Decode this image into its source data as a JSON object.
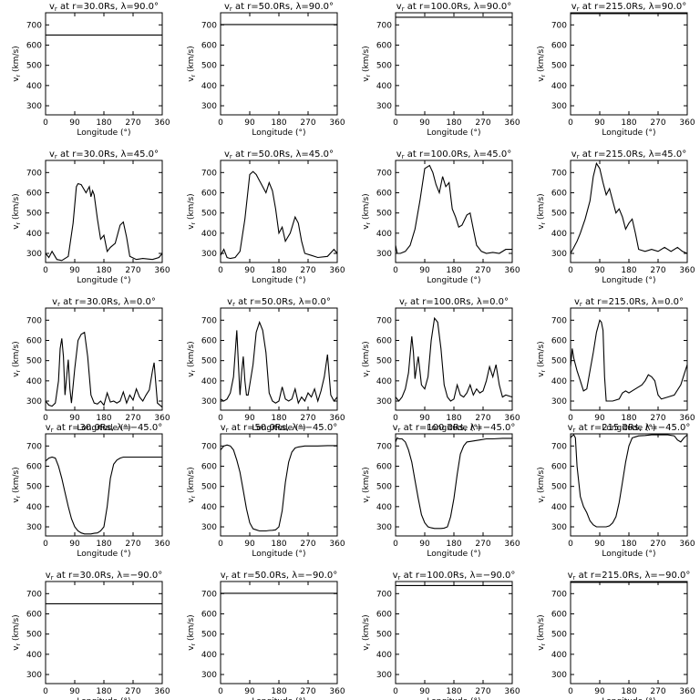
{
  "figure": {
    "xlabel": "Longitude (°)",
    "ylabel": "v_r (km/s)",
    "xticks": [
      0,
      90,
      180,
      270,
      360
    ],
    "yticks": [
      300,
      400,
      500,
      600,
      700
    ],
    "xlim": [
      0,
      360
    ],
    "ylim": [
      255,
      760
    ]
  },
  "chart_data": [
    {
      "type": "line",
      "title": "vr at r=30.0Rs, λ=90.0°",
      "xlabel": "Longitude (°)",
      "ylabel": "vr (km/s)",
      "xlim": [
        0,
        360
      ],
      "ylim": [
        255,
        760
      ],
      "x": [
        0,
        360
      ],
      "values": [
        650,
        650
      ]
    },
    {
      "type": "line",
      "title": "vr at r=50.0Rs, λ=90.0°",
      "xlabel": "Longitude (°)",
      "ylabel": "vr (km/s)",
      "xlim": [
        0,
        360
      ],
      "ylim": [
        255,
        760
      ],
      "x": [
        0,
        360
      ],
      "values": [
        702,
        702
      ]
    },
    {
      "type": "line",
      "title": "vr at r=100.0Rs, λ=90.0°",
      "xlabel": "Longitude (°)",
      "ylabel": "vr (km/s)",
      "xlim": [
        0,
        360
      ],
      "ylim": [
        255,
        760
      ],
      "x": [
        0,
        360
      ],
      "values": [
        738,
        738
      ]
    },
    {
      "type": "line",
      "title": "vr at r=215.0Rs, λ=90.0°",
      "xlabel": "Longitude (°)",
      "ylabel": "vr (km/s)",
      "xlim": [
        0,
        360
      ],
      "ylim": [
        255,
        760
      ],
      "x": [
        0,
        360
      ],
      "values": [
        756,
        756
      ]
    },
    {
      "type": "line",
      "title": "vr at r=30.0Rs, λ=45.0°",
      "xlabel": "Longitude (°)",
      "ylabel": "vr (km/s)",
      "xlim": [
        0,
        360
      ],
      "ylim": [
        255,
        760
      ],
      "x": [
        0,
        10,
        20,
        35,
        50,
        70,
        85,
        95,
        100,
        110,
        125,
        135,
        140,
        145,
        150,
        160,
        170,
        180,
        190,
        200,
        215,
        230,
        240,
        250,
        260,
        280,
        300,
        330,
        350,
        360
      ],
      "values": [
        300,
        280,
        310,
        270,
        265,
        285,
        450,
        630,
        645,
        640,
        600,
        630,
        580,
        610,
        590,
        470,
        370,
        390,
        310,
        330,
        350,
        440,
        455,
        380,
        285,
        270,
        275,
        270,
        280,
        300
      ]
    },
    {
      "type": "line",
      "title": "vr at r=50.0Rs, λ=45.0°",
      "xlabel": "Longitude (°)",
      "ylabel": "vr (km/s)",
      "xlim": [
        0,
        360
      ],
      "ylim": [
        255,
        760
      ],
      "x": [
        0,
        10,
        20,
        30,
        45,
        60,
        75,
        90,
        100,
        110,
        120,
        130,
        140,
        150,
        160,
        170,
        180,
        190,
        200,
        215,
        230,
        240,
        250,
        260,
        280,
        300,
        330,
        350,
        360
      ],
      "values": [
        290,
        320,
        280,
        275,
        280,
        310,
        470,
        690,
        705,
        690,
        660,
        630,
        600,
        650,
        610,
        520,
        400,
        430,
        360,
        400,
        480,
        450,
        360,
        300,
        290,
        280,
        285,
        320,
        300
      ]
    },
    {
      "type": "line",
      "title": "vr at r=100.0Rs, λ=45.0°",
      "xlabel": "Longitude (°)",
      "ylabel": "vr (km/s)",
      "xlim": [
        0,
        360
      ],
      "ylim": [
        255,
        760
      ],
      "x": [
        0,
        5,
        15,
        30,
        45,
        60,
        75,
        90,
        105,
        115,
        125,
        135,
        145,
        155,
        165,
        175,
        185,
        195,
        205,
        220,
        230,
        240,
        250,
        265,
        280,
        300,
        320,
        340,
        360
      ],
      "values": [
        340,
        300,
        300,
        310,
        340,
        420,
        560,
        720,
        735,
        700,
        640,
        600,
        680,
        630,
        650,
        520,
        480,
        430,
        440,
        490,
        500,
        420,
        340,
        310,
        300,
        305,
        300,
        320,
        320
      ]
    },
    {
      "type": "line",
      "title": "vr at r=215.0Rs, λ=45.0°",
      "xlabel": "Longitude (°)",
      "ylabel": "vr (km/s)",
      "xlim": [
        0,
        360
      ],
      "ylim": [
        255,
        760
      ],
      "x": [
        0,
        10,
        20,
        30,
        45,
        60,
        70,
        80,
        90,
        100,
        110,
        120,
        130,
        140,
        150,
        160,
        170,
        180,
        190,
        200,
        210,
        230,
        250,
        270,
        290,
        310,
        330,
        345,
        360
      ],
      "values": [
        300,
        330,
        360,
        400,
        470,
        560,
        680,
        745,
        720,
        650,
        590,
        620,
        560,
        500,
        520,
        480,
        420,
        450,
        470,
        400,
        320,
        310,
        320,
        310,
        330,
        310,
        330,
        310,
        300
      ]
    },
    {
      "type": "line",
      "title": "vr at r=30.0Rs, λ=0.0°",
      "xlabel": "Longitude (°)",
      "ylabel": "vr (km/s)",
      "xlim": [
        0,
        360
      ],
      "ylim": [
        255,
        760
      ],
      "x": [
        0,
        10,
        20,
        30,
        40,
        45,
        50,
        55,
        60,
        65,
        70,
        75,
        80,
        90,
        100,
        110,
        120,
        130,
        140,
        150,
        160,
        170,
        180,
        190,
        200,
        210,
        220,
        230,
        240,
        250,
        260,
        270,
        280,
        290,
        300,
        310,
        320,
        330,
        335,
        340,
        345,
        360
      ],
      "values": [
        300,
        280,
        275,
        290,
        400,
        560,
        610,
        520,
        330,
        420,
        505,
        360,
        290,
        460,
        600,
        630,
        640,
        520,
        330,
        290,
        285,
        300,
        280,
        340,
        295,
        300,
        290,
        300,
        345,
        290,
        330,
        305,
        360,
        320,
        300,
        330,
        355,
        450,
        490,
        390,
        290,
        270
      ]
    },
    {
      "type": "line",
      "title": "vr at r=50.0Rs, λ=0.0°",
      "xlabel": "Longitude (°)",
      "ylabel": "vr (km/s)",
      "xlim": [
        0,
        360
      ],
      "ylim": [
        255,
        760
      ],
      "x": [
        0,
        10,
        20,
        30,
        40,
        50,
        55,
        60,
        65,
        70,
        75,
        80,
        85,
        90,
        100,
        110,
        120,
        130,
        140,
        150,
        160,
        170,
        180,
        190,
        200,
        210,
        220,
        230,
        240,
        250,
        260,
        270,
        280,
        290,
        300,
        310,
        320,
        330,
        340,
        350,
        360
      ],
      "values": [
        310,
        300,
        310,
        340,
        420,
        650,
        480,
        330,
        440,
        520,
        400,
        330,
        330,
        380,
        480,
        640,
        690,
        650,
        540,
        340,
        300,
        290,
        300,
        370,
        310,
        300,
        310,
        360,
        290,
        320,
        300,
        340,
        320,
        360,
        300,
        350,
        420,
        530,
        330,
        300,
        320
      ]
    },
    {
      "type": "line",
      "title": "vr at r=100.0Rs, λ=0.0°",
      "xlabel": "Longitude (°)",
      "ylabel": "vr (km/s)",
      "xlim": [
        0,
        360
      ],
      "ylim": [
        255,
        760
      ],
      "x": [
        0,
        10,
        20,
        30,
        40,
        50,
        55,
        60,
        65,
        70,
        75,
        80,
        90,
        100,
        110,
        120,
        130,
        140,
        150,
        160,
        170,
        180,
        190,
        200,
        210,
        220,
        230,
        240,
        250,
        260,
        270,
        280,
        290,
        300,
        310,
        320,
        330,
        340,
        360
      ],
      "values": [
        320,
        300,
        320,
        360,
        440,
        620,
        540,
        410,
        470,
        520,
        450,
        380,
        360,
        420,
        600,
        710,
        690,
        560,
        380,
        320,
        300,
        310,
        380,
        330,
        320,
        340,
        380,
        330,
        360,
        340,
        350,
        400,
        470,
        420,
        480,
        380,
        320,
        330,
        320
      ]
    },
    {
      "type": "line",
      "title": "vr at r=215.0Rs, λ=0.0°",
      "xlabel": "Longitude (°)",
      "ylabel": "vr (km/s)",
      "xlim": [
        0,
        360
      ],
      "ylim": [
        255,
        760
      ],
      "x": [
        0,
        5,
        10,
        20,
        30,
        40,
        50,
        60,
        70,
        80,
        90,
        95,
        100,
        105,
        110,
        130,
        150,
        160,
        170,
        180,
        200,
        220,
        230,
        240,
        250,
        260,
        270,
        280,
        300,
        320,
        340,
        360
      ],
      "values": [
        470,
        560,
        510,
        450,
        400,
        350,
        360,
        450,
        540,
        640,
        700,
        690,
        650,
        420,
        300,
        300,
        310,
        340,
        350,
        340,
        360,
        380,
        400,
        430,
        420,
        400,
        330,
        310,
        320,
        330,
        380,
        480
      ]
    },
    {
      "type": "line",
      "title": "vr at r=30.0Rs, λ=−45.0°",
      "xlabel": "Longitude (°)",
      "ylabel": "vr (km/s)",
      "xlim": [
        0,
        360
      ],
      "ylim": [
        255,
        760
      ],
      "x": [
        0,
        10,
        20,
        30,
        40,
        50,
        60,
        70,
        80,
        90,
        100,
        110,
        120,
        130,
        140,
        150,
        160,
        170,
        180,
        190,
        200,
        210,
        220,
        230,
        240,
        260,
        280,
        300,
        330,
        360
      ],
      "values": [
        625,
        640,
        645,
        640,
        600,
        540,
        470,
        400,
        340,
        300,
        280,
        270,
        265,
        265,
        265,
        268,
        270,
        280,
        300,
        400,
        540,
        610,
        630,
        640,
        645,
        645,
        645,
        645,
        645,
        645
      ]
    },
    {
      "type": "line",
      "title": "vr at r=50.0Rs, λ=−45.0°",
      "xlabel": "Longitude (°)",
      "ylabel": "vr (km/s)",
      "xlim": [
        0,
        360
      ],
      "ylim": [
        255,
        760
      ],
      "x": [
        0,
        10,
        20,
        30,
        40,
        50,
        60,
        70,
        80,
        90,
        100,
        110,
        120,
        130,
        140,
        150,
        160,
        170,
        180,
        190,
        200,
        210,
        220,
        230,
        240,
        260,
        280,
        300,
        330,
        360
      ],
      "values": [
        680,
        700,
        705,
        700,
        680,
        630,
        570,
        480,
        390,
        320,
        290,
        285,
        280,
        280,
        280,
        282,
        283,
        285,
        300,
        380,
        520,
        620,
        670,
        690,
        695,
        700,
        700,
        700,
        702,
        702
      ]
    },
    {
      "type": "line",
      "title": "vr at r=100.0Rs, λ=−45.0°",
      "xlabel": "Longitude (°)",
      "ylabel": "vr (km/s)",
      "xlim": [
        0,
        360
      ],
      "ylim": [
        255,
        760
      ],
      "x": [
        0,
        5,
        10,
        20,
        30,
        40,
        50,
        60,
        70,
        80,
        90,
        100,
        110,
        120,
        130,
        140,
        150,
        160,
        170,
        180,
        190,
        200,
        210,
        220,
        240,
        260,
        280,
        300,
        330,
        360
      ],
      "values": [
        720,
        740,
        735,
        735,
        720,
        680,
        620,
        530,
        440,
        360,
        320,
        300,
        295,
        292,
        292,
        292,
        294,
        300,
        350,
        440,
        560,
        660,
        700,
        720,
        725,
        730,
        735,
        735,
        738,
        738
      ]
    },
    {
      "type": "line",
      "title": "vr at r=215.0Rs, λ=−45.0°",
      "xlabel": "Longitude (°)",
      "ylabel": "vr (km/s)",
      "xlim": [
        0,
        360
      ],
      "ylim": [
        255,
        760
      ],
      "x": [
        0,
        5,
        10,
        15,
        20,
        30,
        40,
        50,
        60,
        70,
        80,
        90,
        100,
        110,
        120,
        130,
        140,
        150,
        160,
        170,
        180,
        190,
        200,
        210,
        230,
        250,
        270,
        300,
        320,
        330,
        340,
        350,
        360
      ],
      "values": [
        740,
        750,
        755,
        740,
        600,
        450,
        400,
        370,
        330,
        310,
        300,
        300,
        300,
        300,
        305,
        320,
        350,
        420,
        520,
        620,
        700,
        740,
        745,
        750,
        752,
        755,
        755,
        755,
        750,
        730,
        720,
        740,
        755
      ]
    },
    {
      "type": "line",
      "title": "vr at r=30.0Rs, λ=−90.0°",
      "xlabel": "Longitude (°)",
      "ylabel": "vr (km/s)",
      "xlim": [
        0,
        360
      ],
      "ylim": [
        255,
        760
      ],
      "x": [
        0,
        360
      ],
      "values": [
        650,
        650
      ]
    },
    {
      "type": "line",
      "title": "vr at r=50.0Rs, λ=−90.0°",
      "xlabel": "Longitude (°)",
      "ylabel": "vr (km/s)",
      "xlim": [
        0,
        360
      ],
      "ylim": [
        255,
        760
      ],
      "x": [
        0,
        360
      ],
      "values": [
        702,
        702
      ]
    },
    {
      "type": "line",
      "title": "vr at r=100.0Rs, λ=−90.0°",
      "xlabel": "Longitude (°)",
      "ylabel": "vr (km/s)",
      "xlim": [
        0,
        360
      ],
      "ylim": [
        255,
        760
      ],
      "x": [
        0,
        360
      ],
      "values": [
        740,
        740
      ]
    },
    {
      "type": "line",
      "title": "vr at r=215.0Rs, λ=−90.0°",
      "xlabel": "Longitude (°)",
      "ylabel": "vr (km/s)",
      "xlim": [
        0,
        360
      ],
      "ylim": [
        255,
        760
      ],
      "x": [
        0,
        360
      ],
      "values": [
        756,
        756
      ]
    }
  ]
}
